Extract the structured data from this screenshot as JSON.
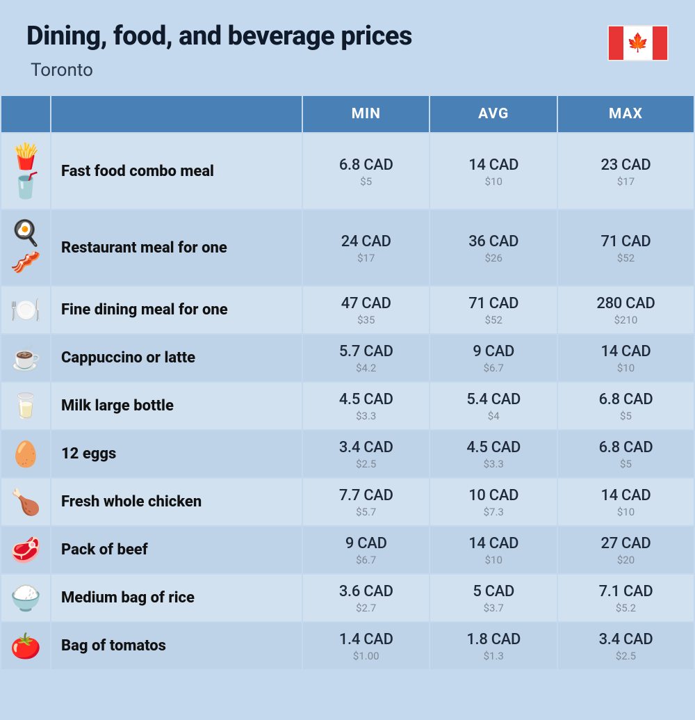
{
  "header": {
    "title": "Dining, food, and beverage prices",
    "subtitle": "Toronto",
    "flag_colors": {
      "red": "#e73535",
      "white": "#ffffff"
    }
  },
  "table": {
    "header_bg": "#4980b5",
    "header_text_color": "#ffffff",
    "row_odd_bg": "#d2e1f0",
    "row_even_bg": "#bed2e8",
    "page_bg": "#c4d8ee",
    "cad_text_color": "#1f2a3a",
    "usd_text_color": "#7f8a95",
    "columns": [
      "",
      "",
      "MIN",
      "AVG",
      "MAX"
    ],
    "rows": [
      {
        "icon": "🍟🥤",
        "name": "Fast food combo meal",
        "min_cad": "6.8 CAD",
        "min_usd": "$5",
        "avg_cad": "14 CAD",
        "avg_usd": "$10",
        "max_cad": "23 CAD",
        "max_usd": "$17"
      },
      {
        "icon": "🍳🥓",
        "name": "Restaurant meal for one",
        "min_cad": "24 CAD",
        "min_usd": "$17",
        "avg_cad": "36 CAD",
        "avg_usd": "$26",
        "max_cad": "71 CAD",
        "max_usd": "$52"
      },
      {
        "icon": "🍽️",
        "name": "Fine dining meal for one",
        "min_cad": "47 CAD",
        "min_usd": "$35",
        "avg_cad": "71 CAD",
        "avg_usd": "$52",
        "max_cad": "280 CAD",
        "max_usd": "$210"
      },
      {
        "icon": "☕",
        "name": "Cappuccino or latte",
        "min_cad": "5.7 CAD",
        "min_usd": "$4.2",
        "avg_cad": "9 CAD",
        "avg_usd": "$6.7",
        "max_cad": "14 CAD",
        "max_usd": "$10"
      },
      {
        "icon": "🥛",
        "name": "Milk large bottle",
        "min_cad": "4.5 CAD",
        "min_usd": "$3.3",
        "avg_cad": "5.4 CAD",
        "avg_usd": "$4",
        "max_cad": "6.8 CAD",
        "max_usd": "$5"
      },
      {
        "icon": "🥚",
        "name": "12 eggs",
        "min_cad": "3.4 CAD",
        "min_usd": "$2.5",
        "avg_cad": "4.5 CAD",
        "avg_usd": "$3.3",
        "max_cad": "6.8 CAD",
        "max_usd": "$5"
      },
      {
        "icon": "🍗",
        "name": "Fresh whole chicken",
        "min_cad": "7.7 CAD",
        "min_usd": "$5.7",
        "avg_cad": "10 CAD",
        "avg_usd": "$7.3",
        "max_cad": "14 CAD",
        "max_usd": "$10"
      },
      {
        "icon": "🥩",
        "name": "Pack of beef",
        "min_cad": "9 CAD",
        "min_usd": "$6.7",
        "avg_cad": "14 CAD",
        "avg_usd": "$10",
        "max_cad": "27 CAD",
        "max_usd": "$20"
      },
      {
        "icon": "🍚",
        "name": "Medium bag of rice",
        "min_cad": "3.6 CAD",
        "min_usd": "$2.7",
        "avg_cad": "5 CAD",
        "avg_usd": "$3.7",
        "max_cad": "7.1 CAD",
        "max_usd": "$5.2"
      },
      {
        "icon": "🍅",
        "name": "Bag of tomatos",
        "min_cad": "1.4 CAD",
        "min_usd": "$1.00",
        "avg_cad": "1.8 CAD",
        "avg_usd": "$1.3",
        "max_cad": "3.4 CAD",
        "max_usd": "$2.5"
      }
    ]
  }
}
